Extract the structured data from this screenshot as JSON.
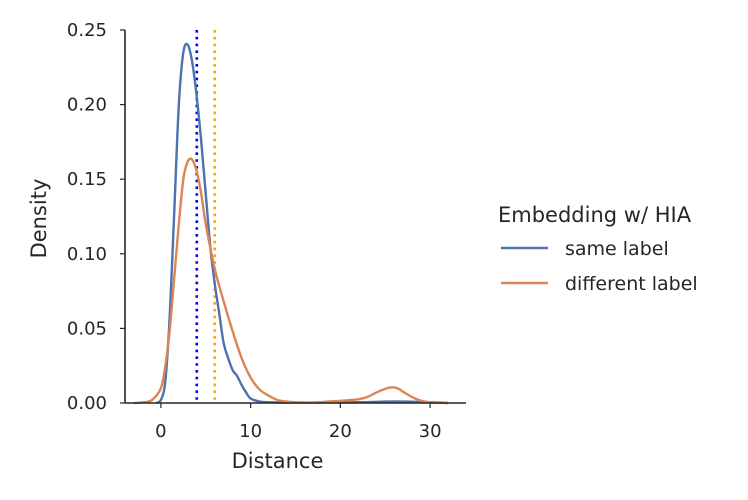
{
  "chart_data": {
    "type": "line",
    "xlabel": "Distance",
    "ylabel": "Density",
    "xlim": [
      -4,
      34
    ],
    "ylim": [
      0,
      0.25
    ],
    "xticks": [
      0,
      10,
      20,
      30
    ],
    "yticks": [
      0.0,
      0.05,
      0.1,
      0.15,
      0.2,
      0.25
    ],
    "xtick_labels": [
      "0",
      "10",
      "20",
      "30"
    ],
    "ytick_labels": [
      "0.00",
      "0.05",
      "0.10",
      "0.15",
      "0.20",
      "0.25"
    ],
    "grid": false,
    "legend": {
      "title": "Embedding w/ HIA",
      "placement": "right, outside plot",
      "entries": [
        "same label",
        "different label"
      ]
    },
    "series": [
      {
        "name": "same label",
        "color": "#4c72b0",
        "x": [
          -0.5,
          0,
          0.5,
          1,
          1.5,
          2,
          2.5,
          3,
          3.5,
          4,
          4.5,
          5,
          5.5,
          6,
          6.5,
          7,
          7.5,
          8,
          8.5,
          9,
          9.5,
          10,
          11,
          12,
          14,
          18,
          22,
          26,
          30,
          32
        ],
        "values": [
          0.0,
          0.002,
          0.015,
          0.06,
          0.13,
          0.2,
          0.235,
          0.24,
          0.228,
          0.205,
          0.175,
          0.14,
          0.105,
          0.08,
          0.06,
          0.04,
          0.03,
          0.022,
          0.018,
          0.012,
          0.007,
          0.003,
          0.001,
          0.0005,
          0.0003,
          0.0003,
          0.0005,
          0.001,
          0.0005,
          0.0
        ]
      },
      {
        "name": "different label",
        "color": "#dd8452",
        "x": [
          -3,
          -2,
          -1,
          0,
          0.5,
          1,
          1.5,
          2,
          2.5,
          3,
          3.5,
          4,
          4.5,
          5,
          6,
          7,
          8,
          9,
          10,
          11,
          12,
          13,
          14,
          15,
          17,
          20,
          22,
          23,
          24,
          25,
          25.8,
          26.5,
          27,
          28,
          29,
          30,
          31,
          32
        ],
        "values": [
          0.0,
          0.0005,
          0.002,
          0.01,
          0.025,
          0.05,
          0.085,
          0.12,
          0.15,
          0.162,
          0.163,
          0.155,
          0.14,
          0.12,
          0.09,
          0.068,
          0.048,
          0.03,
          0.017,
          0.009,
          0.005,
          0.002,
          0.001,
          0.0005,
          0.0003,
          0.0015,
          0.0025,
          0.004,
          0.007,
          0.0095,
          0.0105,
          0.0095,
          0.0075,
          0.004,
          0.0015,
          0.0005,
          0.0002,
          0.0
        ]
      }
    ],
    "reference_lines": [
      {
        "x": 4.0,
        "color": "#0000ff",
        "style": "dotted"
      },
      {
        "x": 6.0,
        "color": "#ffa500",
        "style": "dotted"
      }
    ]
  }
}
